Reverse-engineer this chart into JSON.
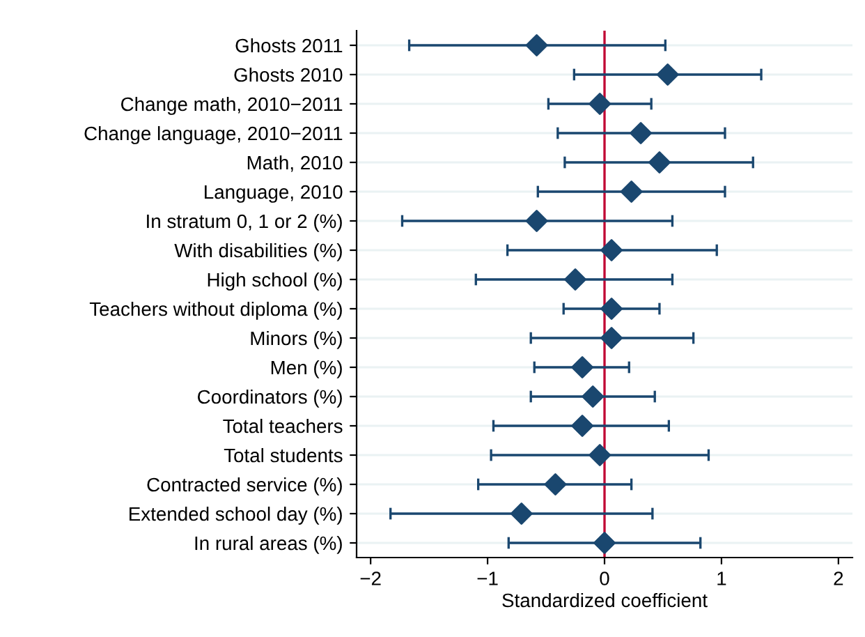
{
  "chart_data": {
    "type": "scatter",
    "orientation": "horizontal",
    "xlabel": "Standardized coefficient",
    "categories": [
      "Ghosts 2011",
      "Ghosts 2010",
      "Change math, 2010−2011",
      "Change language, 2010−2011",
      "Math, 2010",
      "Language, 2010",
      "In stratum 0, 1 or 2 (%)",
      "With disabilities (%)",
      "High school (%)",
      "Teachers without diploma (%)",
      "Minors (%)",
      "Men (%)",
      "Coordinators (%)",
      "Total teachers",
      "Total students",
      "Contracted service (%)",
      "Extended school day (%)",
      "In rural areas (%)"
    ],
    "values": [
      -0.58,
      0.54,
      -0.04,
      0.31,
      0.47,
      0.23,
      -0.58,
      0.06,
      -0.25,
      0.06,
      0.06,
      -0.19,
      -0.1,
      -0.19,
      -0.04,
      -0.42,
      -0.71,
      0.0
    ],
    "errors": [
      [
        -1.67,
        0.52
      ],
      [
        -0.26,
        1.34
      ],
      [
        -0.48,
        0.4
      ],
      [
        -0.4,
        1.03
      ],
      [
        -0.34,
        1.27
      ],
      [
        -0.57,
        1.03
      ],
      [
        -1.73,
        0.58
      ],
      [
        -0.83,
        0.96
      ],
      [
        -1.1,
        0.58
      ],
      [
        -0.35,
        0.47
      ],
      [
        -0.63,
        0.76
      ],
      [
        -0.6,
        0.21
      ],
      [
        -0.63,
        0.43
      ],
      [
        -0.95,
        0.55
      ],
      [
        -0.97,
        0.89
      ],
      [
        -1.08,
        0.23
      ],
      [
        -1.83,
        0.41
      ],
      [
        -0.82,
        0.82
      ]
    ],
    "color": "#1a476f",
    "marker": "diamond",
    "grid": "y",
    "xlim": [
      -2.12,
      2.12
    ],
    "xticks": [
      {
        "value": -2,
        "label": "−2"
      },
      {
        "value": -1,
        "label": "−1"
      },
      0,
      1,
      2
    ],
    "ref_lines": [
      {
        "axis": "x",
        "value": 0,
        "color": "#c10534"
      }
    ]
  }
}
